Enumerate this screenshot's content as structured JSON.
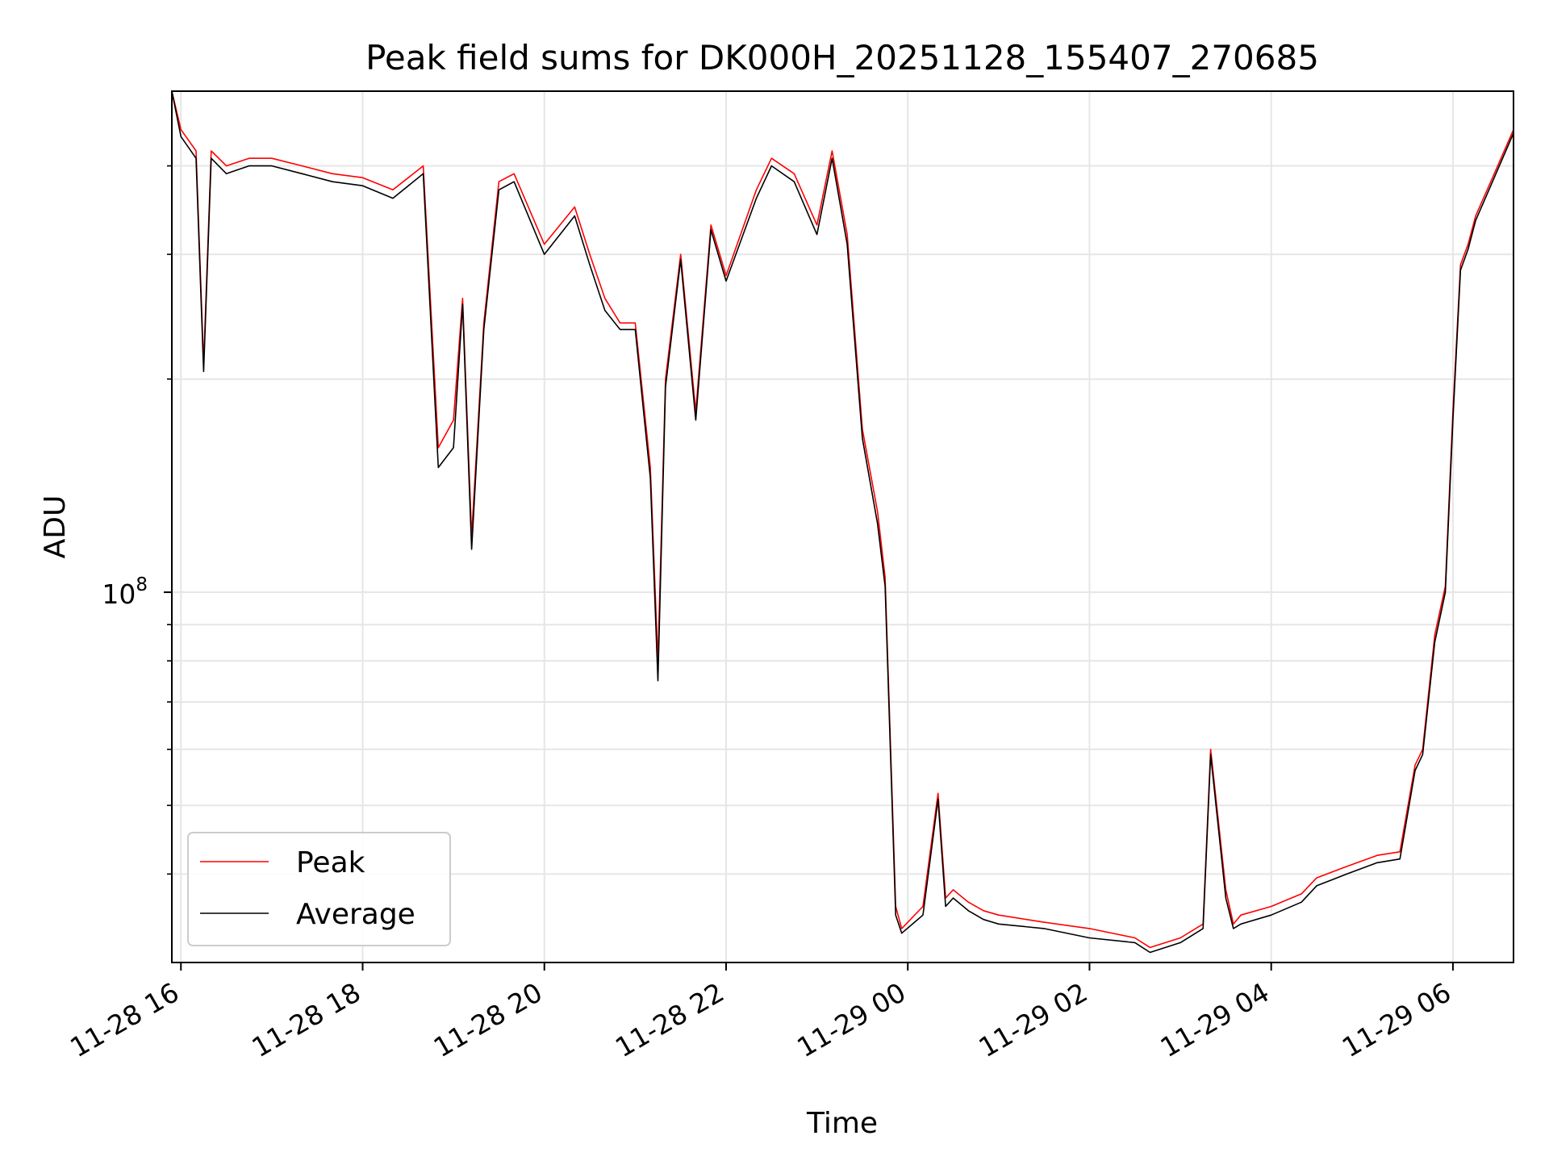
{
  "chart_data": {
    "type": "line",
    "title": "Peak field sums for DK000H_20251128_155407_270685",
    "xlabel": "Time",
    "ylabel": "ADU",
    "y_scale": "log",
    "ylim": [
      30000000,
      510000000
    ],
    "xlim": [
      "2025-11-28 15:54",
      "2025-11-29 06:40"
    ],
    "x_ticks": [
      "2025-11-28 16:00",
      "2025-11-28 18:00",
      "2025-11-28 20:00",
      "2025-11-28 22:00",
      "2025-11-29 00:00",
      "2025-11-29 02:00",
      "2025-11-29 04:00",
      "2025-11-29 06:00"
    ],
    "x_tick_labels": [
      "11-28 16",
      "11-28 18",
      "11-28 20",
      "11-28 22",
      "11-29 00",
      "11-29 02",
      "11-29 04",
      "11-29 06"
    ],
    "y_major_tick_value": 100000000,
    "y_major_tick_label": "10",
    "y_major_tick_exponent": "8",
    "y_minor_tick_values": [
      40000000,
      50000000,
      60000000,
      70000000,
      80000000,
      90000000,
      200000000,
      300000000,
      400000000
    ],
    "grid": true,
    "legend": {
      "position": "lower-left",
      "entries": [
        {
          "label": "Peak",
          "color": "#ff0000"
        },
        {
          "label": "Average",
          "color": "#000000"
        }
      ]
    },
    "series": [
      {
        "name": "Peak",
        "color": "#ff0000",
        "x": [
          "2025-11-28 15:54",
          "2025-11-28 16:00",
          "2025-11-28 16:10",
          "2025-11-28 16:15",
          "2025-11-28 16:20",
          "2025-11-28 16:30",
          "2025-11-28 16:45",
          "2025-11-28 17:00",
          "2025-11-28 17:20",
          "2025-11-28 17:40",
          "2025-11-28 18:00",
          "2025-11-28 18:20",
          "2025-11-28 18:40",
          "2025-11-28 18:50",
          "2025-11-28 19:00",
          "2025-11-28 19:06",
          "2025-11-28 19:12",
          "2025-11-28 19:20",
          "2025-11-28 19:30",
          "2025-11-28 19:40",
          "2025-11-28 20:00",
          "2025-11-28 20:20",
          "2025-11-28 20:30",
          "2025-11-28 20:40",
          "2025-11-28 20:50",
          "2025-11-28 21:00",
          "2025-11-28 21:10",
          "2025-11-28 21:15",
          "2025-11-28 21:20",
          "2025-11-28 21:30",
          "2025-11-28 21:40",
          "2025-11-28 21:50",
          "2025-11-28 22:00",
          "2025-11-28 22:20",
          "2025-11-28 22:30",
          "2025-11-28 22:45",
          "2025-11-28 23:00",
          "2025-11-28 23:10",
          "2025-11-28 23:20",
          "2025-11-28 23:30",
          "2025-11-28 23:40",
          "2025-11-28 23:45",
          "2025-11-28 23:52",
          "2025-11-28 23:56",
          "2025-11-29 00:10",
          "2025-11-29 00:20",
          "2025-11-29 00:25",
          "2025-11-29 00:30",
          "2025-11-29 00:40",
          "2025-11-29 00:50",
          "2025-11-29 01:00",
          "2025-11-29 01:30",
          "2025-11-29 02:00",
          "2025-11-29 02:30",
          "2025-11-29 02:40",
          "2025-11-29 03:00",
          "2025-11-29 03:15",
          "2025-11-29 03:20",
          "2025-11-29 03:30",
          "2025-11-29 03:35",
          "2025-11-29 03:40",
          "2025-11-29 04:00",
          "2025-11-29 04:20",
          "2025-11-29 04:30",
          "2025-11-29 04:50",
          "2025-11-29 05:10",
          "2025-11-29 05:25",
          "2025-11-29 05:35",
          "2025-11-29 05:40",
          "2025-11-29 05:48",
          "2025-11-29 05:55",
          "2025-11-29 06:00",
          "2025-11-29 06:05",
          "2025-11-29 06:10",
          "2025-11-29 06:15",
          "2025-11-29 06:25",
          "2025-11-29 06:40"
        ],
        "y": [
          510000000,
          450000000,
          420000000,
          210000000,
          420000000,
          400000000,
          410000000,
          410000000,
          400000000,
          390000000,
          385000000,
          370000000,
          400000000,
          160000000,
          175000000,
          260000000,
          120000000,
          240000000,
          380000000,
          390000000,
          310000000,
          350000000,
          300000000,
          260000000,
          240000000,
          240000000,
          150000000,
          80000000,
          200000000,
          300000000,
          180000000,
          330000000,
          280000000,
          370000000,
          410000000,
          390000000,
          330000000,
          420000000,
          320000000,
          170000000,
          130000000,
          105000000,
          36000000,
          33500000,
          36000000,
          52000000,
          37000000,
          38000000,
          36500000,
          35500000,
          35000000,
          34200000,
          33500000,
          32500000,
          31500000,
          32500000,
          34000000,
          60000000,
          38000000,
          34000000,
          35000000,
          36000000,
          37500000,
          39500000,
          41000000,
          42500000,
          43000000,
          57000000,
          60000000,
          87000000,
          102000000,
          180000000,
          290000000,
          310000000,
          340000000,
          380000000,
          450000000
        ]
      },
      {
        "name": "Average",
        "color": "#000000",
        "x": [
          "2025-11-28 15:54",
          "2025-11-28 16:00",
          "2025-11-28 16:10",
          "2025-11-28 16:15",
          "2025-11-28 16:20",
          "2025-11-28 16:30",
          "2025-11-28 16:45",
          "2025-11-28 17:00",
          "2025-11-28 17:20",
          "2025-11-28 17:40",
          "2025-11-28 18:00",
          "2025-11-28 18:20",
          "2025-11-28 18:40",
          "2025-11-28 18:50",
          "2025-11-28 19:00",
          "2025-11-28 19:06",
          "2025-11-28 19:12",
          "2025-11-28 19:20",
          "2025-11-28 19:30",
          "2025-11-28 19:40",
          "2025-11-28 20:00",
          "2025-11-28 20:20",
          "2025-11-28 20:30",
          "2025-11-28 20:40",
          "2025-11-28 20:50",
          "2025-11-28 21:00",
          "2025-11-28 21:10",
          "2025-11-28 21:15",
          "2025-11-28 21:20",
          "2025-11-28 21:30",
          "2025-11-28 21:40",
          "2025-11-28 21:50",
          "2025-11-28 22:00",
          "2025-11-28 22:20",
          "2025-11-28 22:30",
          "2025-11-28 22:45",
          "2025-11-28 23:00",
          "2025-11-28 23:10",
          "2025-11-28 23:20",
          "2025-11-28 23:30",
          "2025-11-28 23:40",
          "2025-11-28 23:45",
          "2025-11-28 23:52",
          "2025-11-28 23:56",
          "2025-11-29 00:10",
          "2025-11-29 00:20",
          "2025-11-29 00:25",
          "2025-11-29 00:30",
          "2025-11-29 00:40",
          "2025-11-29 00:50",
          "2025-11-29 01:00",
          "2025-11-29 01:30",
          "2025-11-29 02:00",
          "2025-11-29 02:30",
          "2025-11-29 02:40",
          "2025-11-29 03:00",
          "2025-11-29 03:15",
          "2025-11-29 03:20",
          "2025-11-29 03:30",
          "2025-11-29 03:35",
          "2025-11-29 03:40",
          "2025-11-29 04:00",
          "2025-11-29 04:20",
          "2025-11-29 04:30",
          "2025-11-29 04:50",
          "2025-11-29 05:10",
          "2025-11-29 05:25",
          "2025-11-29 05:35",
          "2025-11-29 05:40",
          "2025-11-29 05:48",
          "2025-11-29 05:55",
          "2025-11-29 06:00",
          "2025-11-29 06:05",
          "2025-11-29 06:10",
          "2025-11-29 06:15",
          "2025-11-29 06:25",
          "2025-11-29 06:40"
        ],
        "y": [
          510000000,
          440000000,
          410000000,
          205000000,
          410000000,
          390000000,
          400000000,
          400000000,
          390000000,
          380000000,
          375000000,
          360000000,
          390000000,
          150000000,
          160000000,
          255000000,
          115000000,
          235000000,
          370000000,
          380000000,
          300000000,
          340000000,
          290000000,
          250000000,
          235000000,
          235000000,
          145000000,
          75000000,
          195000000,
          295000000,
          175000000,
          325000000,
          275000000,
          360000000,
          400000000,
          380000000,
          320000000,
          410000000,
          310000000,
          165000000,
          125000000,
          102000000,
          35000000,
          33000000,
          35000000,
          51000000,
          36000000,
          37000000,
          35500000,
          34500000,
          34000000,
          33500000,
          32500000,
          32000000,
          31000000,
          32000000,
          33500000,
          59000000,
          37000000,
          33500000,
          34000000,
          35000000,
          36500000,
          38500000,
          40000000,
          41500000,
          42000000,
          56000000,
          59000000,
          85000000,
          100000000,
          175000000,
          285000000,
          305000000,
          335000000,
          375000000,
          445000000
        ]
      }
    ]
  }
}
